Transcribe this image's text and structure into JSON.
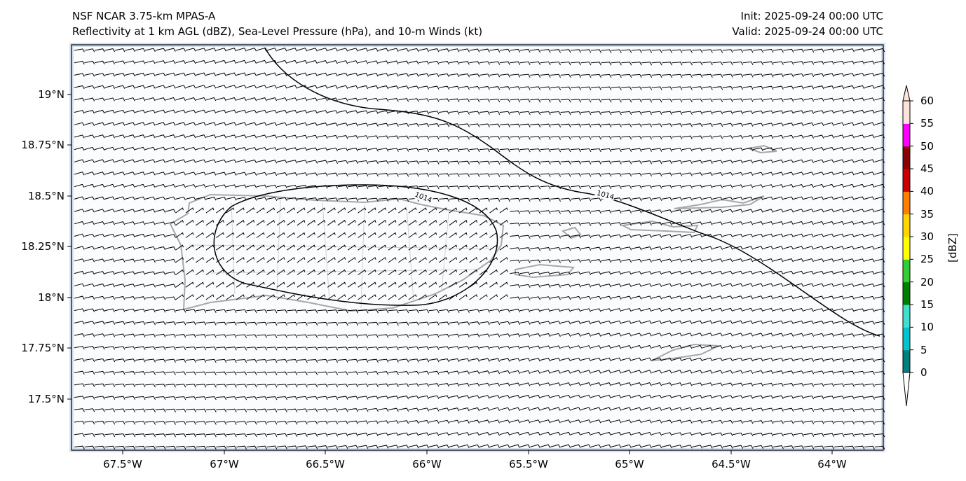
{
  "header": {
    "title_left_1": "NSF NCAR 3.75-km MPAS-A",
    "title_left_2": "Reflectivity at 1 km AGL (dBZ), Sea-Level Pressure (hPa), and 10-m Winds (kt)",
    "init": "Init: 2025-09-24 00:00 UTC",
    "valid": "Valid: 2025-09-24 00:00 UTC"
  },
  "axes": {
    "lat_labels": [
      "19°N",
      "18.75°N",
      "18.5°N",
      "18.25°N",
      "18°N",
      "17.75°N",
      "17.5°N"
    ],
    "lon_labels": [
      "67.5°W",
      "67°W",
      "66.5°W",
      "66°W",
      "65.5°W",
      "65°W",
      "64.5°W",
      "64°W"
    ],
    "extent": {
      "lon": [
        -67.75,
        -63.75
      ],
      "lat": [
        17.25,
        19.25
      ]
    }
  },
  "contours": {
    "slp_labels": [
      "1014",
      "1014"
    ]
  },
  "colorbar": {
    "label": "[dBZ]",
    "ticks": [
      "0",
      "5",
      "10",
      "15",
      "20",
      "25",
      "30",
      "35",
      "40",
      "45",
      "50",
      "55",
      "60"
    ],
    "colors": [
      "#008080",
      "#00c5cc",
      "#40e0d0",
      "#008000",
      "#32cd32",
      "#ffff00",
      "#ffd700",
      "#ff8000",
      "#cc0000",
      "#8b0000",
      "#ff00ff",
      "#fde3da"
    ]
  },
  "colors": {
    "coast": "#a8a8a8",
    "map_bg": "#fbfcfd",
    "edge": "#d6e2ef"
  }
}
